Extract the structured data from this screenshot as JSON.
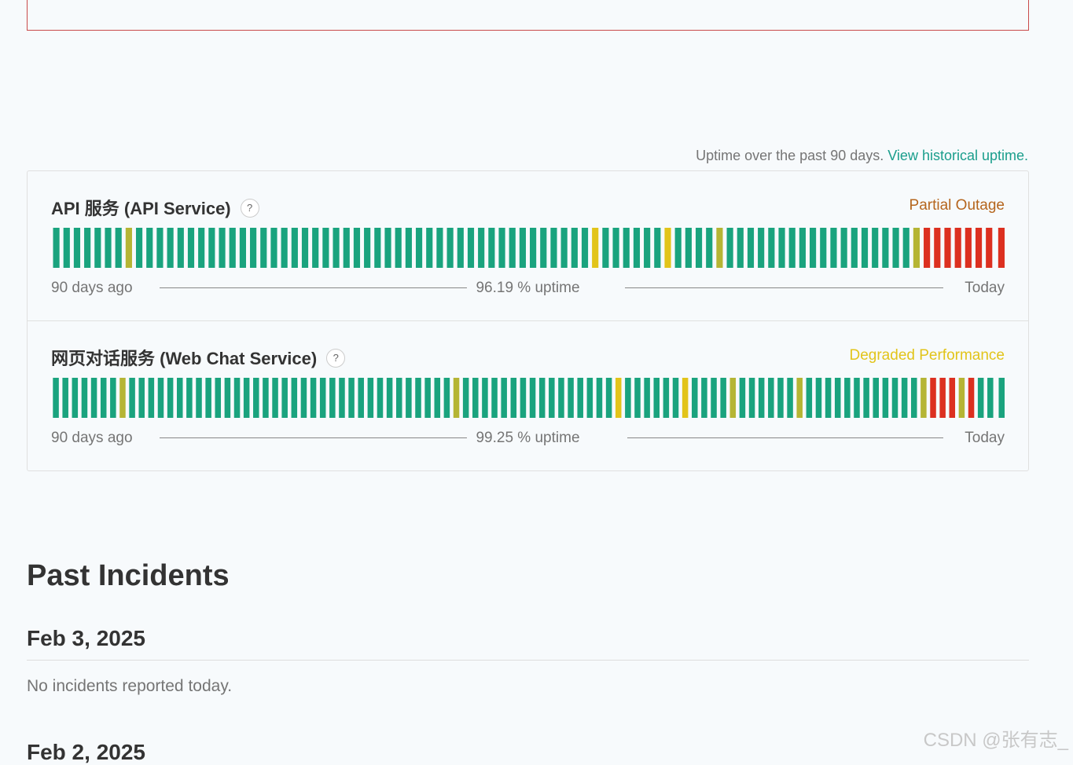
{
  "uptime_note": {
    "text": "Uptime over the past 90 days.",
    "link": "View historical uptime."
  },
  "colors": {
    "operational": "#1aa37e",
    "minor": "#b5b534",
    "degraded": "#e2c41a",
    "outage": "#dc3020"
  },
  "components": [
    {
      "name": "API 服务 (API Service)",
      "help": "?",
      "status": "Partial Outage",
      "status_color": "#b5651d",
      "left_label": "90 days ago",
      "uptime": "96.19 % uptime",
      "right_label": "Today",
      "days": "oooooooMooooooooooooooooooooooooooooooooooooooooooooDooooooDooooMooooooooooooooooooMRRRRRRRR"
    },
    {
      "name": "网页对话服务 (Web Chat Service)",
      "help": "?",
      "status": "Degraded Performance",
      "status_color": "#e2c41a",
      "left_label": "90 days ago",
      "uptime": "99.25 % uptime",
      "right_label": "Today",
      "days": "oooooooMooooooooooooooooooooooooooooooooooMooooooooooooooooDooooooDooooMooooooMooooooooooooMRRRMRooo"
    }
  ],
  "past_incidents": {
    "title": "Past Incidents",
    "days": [
      {
        "date": "Feb 3, 2025",
        "message": "No incidents reported today."
      },
      {
        "date": "Feb 2, 2025"
      }
    ]
  },
  "watermark": "CSDN @张有志_"
}
